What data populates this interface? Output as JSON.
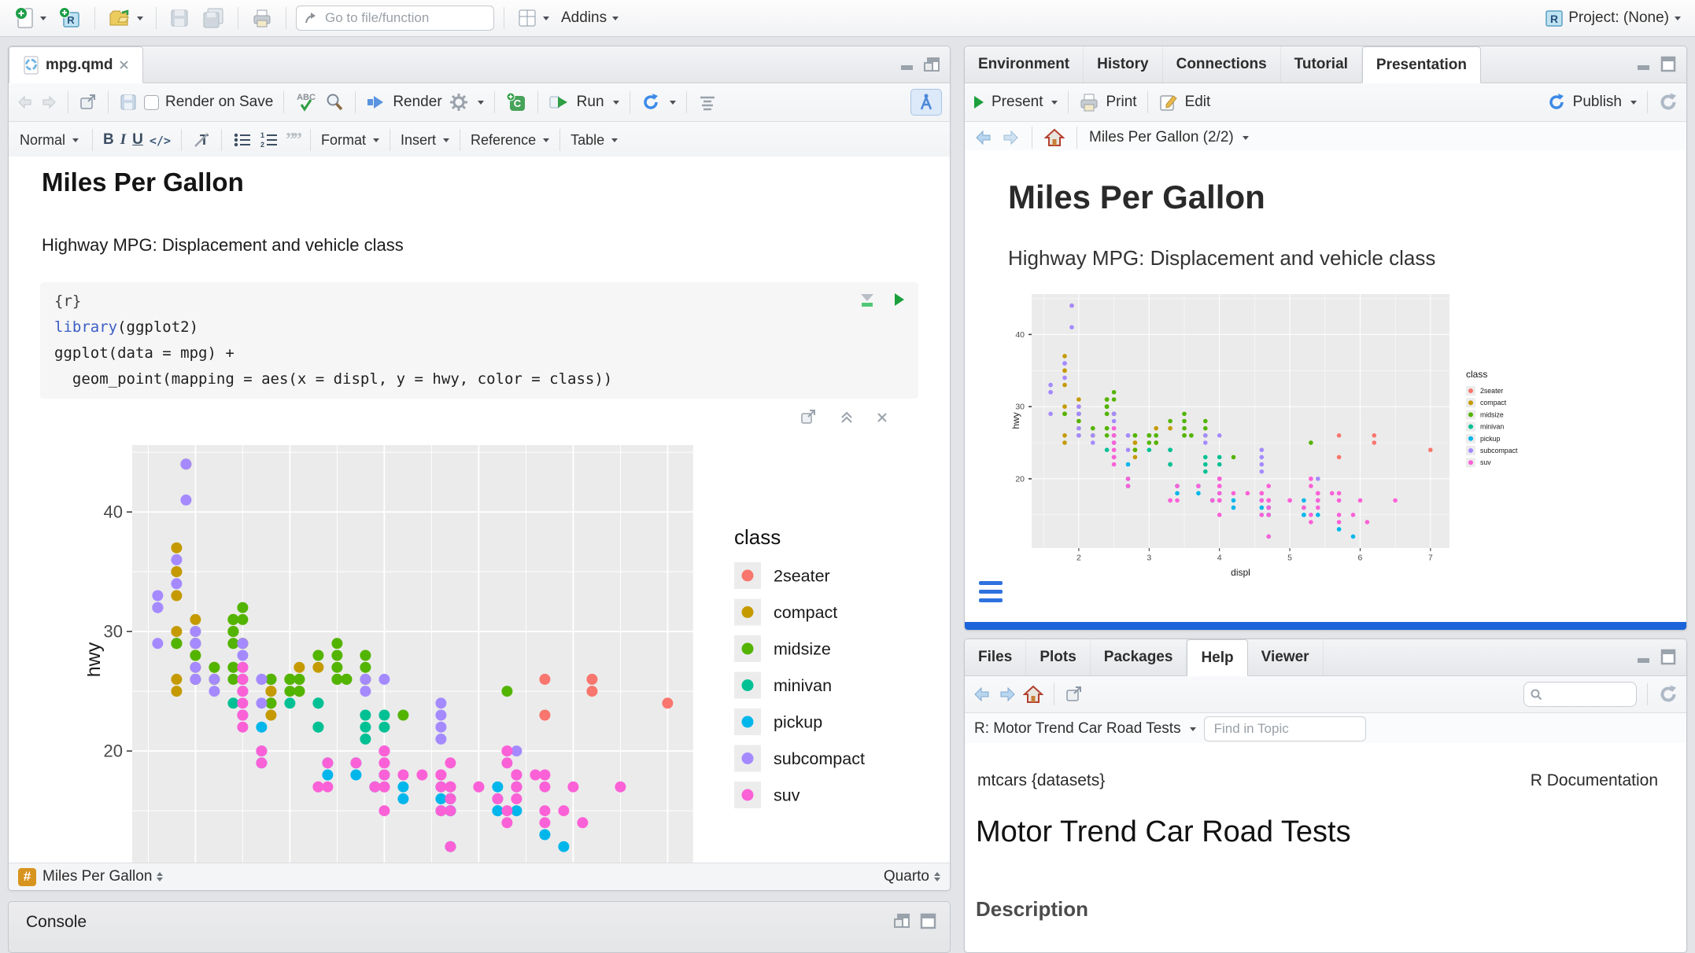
{
  "window": {
    "goto_placeholder": "Go to file/function",
    "addins_label": "Addins",
    "project_label": "Project: (None)"
  },
  "source_pane": {
    "tab_title": "mpg.qmd",
    "toolbar": {
      "render_on_save": "Render on Save",
      "render": "Render",
      "run": "Run"
    },
    "format_bar": {
      "style": "Normal",
      "bold": "B",
      "italic": "I",
      "underline": "U",
      "format": "Format",
      "insert": "Insert",
      "reference": "Reference",
      "table": "Table"
    },
    "document": {
      "title": "Miles Per Gallon",
      "subtitle": "Highway MPG: Displacement and vehicle class",
      "chunk": {
        "header": "{r}",
        "lines": [
          {
            "parts": [
              {
                "text": "library",
                "style": "function"
              },
              {
                "text": "(ggplot2)",
                "style": "plain"
              }
            ]
          },
          {
            "parts": [
              {
                "text": "ggplot(data = mpg) +",
                "style": "plain"
              }
            ]
          },
          {
            "parts": [
              {
                "text": "  geom_point(mapping = aes(x = displ, y = hwy, color = class))",
                "style": "plain"
              }
            ]
          }
        ]
      }
    },
    "status_bar": {
      "section": "Miles Per Gallon",
      "mode": "Quarto"
    }
  },
  "console_pane": {
    "title": "Console"
  },
  "presentation_pane": {
    "tabs": [
      "Environment",
      "History",
      "Connections",
      "Tutorial",
      "Presentation"
    ],
    "active_tab": "Presentation",
    "toolbar": {
      "present": "Present",
      "print": "Print",
      "edit": "Edit",
      "publish": "Publish"
    },
    "nav_title": "Miles Per Gallon (2/2)",
    "slide": {
      "title": "Miles Per Gallon",
      "subtitle": "Highway MPG: Displacement and vehicle class"
    },
    "progress_color": "#1b64da"
  },
  "help_pane": {
    "tabs": [
      "Files",
      "Plots",
      "Packages",
      "Help",
      "Viewer"
    ],
    "active_tab": "Help",
    "topic_label": "R: Motor Trend Car Road Tests",
    "find_placeholder": "Find in Topic",
    "content": {
      "symbol": "mtcars {datasets}",
      "doc_label": "R Documentation",
      "title": "Motor Trend Car Road Tests",
      "section_heading": "Description"
    }
  },
  "chart_data": {
    "type": "scatter",
    "title": "",
    "xlabel": "displ",
    "ylabel": "hwy",
    "legend_title": "class",
    "legend_position": "right",
    "grid": true,
    "panel_bg": "#EBEBEB",
    "xlim": [
      1.33,
      7.27
    ],
    "ylim": [
      10.4,
      45.6
    ],
    "x_ticks": [
      2,
      3,
      4,
      5,
      6,
      7
    ],
    "y_ticks": [
      20,
      30,
      40
    ],
    "series": [
      {
        "name": "2seater",
        "color": "#F8766D",
        "points": [
          [
            5.7,
            26
          ],
          [
            5.7,
            23
          ],
          [
            6.2,
            26
          ],
          [
            6.2,
            25
          ],
          [
            7,
            24
          ]
        ]
      },
      {
        "name": "compact",
        "color": "#C49A00",
        "points": [
          [
            1.8,
            29
          ],
          [
            1.8,
            29
          ],
          [
            2,
            31
          ],
          [
            2,
            30
          ],
          [
            2.8,
            26
          ],
          [
            2.8,
            26
          ],
          [
            3.1,
            27
          ],
          [
            1.8,
            26
          ],
          [
            1.8,
            25
          ],
          [
            2,
            28
          ],
          [
            2,
            27
          ],
          [
            2.8,
            25
          ],
          [
            2.8,
            25
          ],
          [
            3.1,
            25
          ],
          [
            3.1,
            25
          ],
          [
            2.2,
            26
          ],
          [
            2.2,
            27
          ],
          [
            2.4,
            30
          ],
          [
            2.4,
            31
          ],
          [
            3,
            26
          ],
          [
            3,
            26
          ],
          [
            3.3,
            27
          ],
          [
            1.8,
            30
          ],
          [
            1.8,
            33
          ],
          [
            1.8,
            35
          ],
          [
            1.8,
            37
          ],
          [
            1.8,
            35
          ],
          [
            2,
            29
          ],
          [
            2,
            26
          ],
          [
            2,
            29
          ],
          [
            2,
            29
          ],
          [
            2.8,
            24
          ],
          [
            1.9,
            44
          ],
          [
            2,
            29
          ],
          [
            2,
            26
          ],
          [
            2,
            29
          ],
          [
            2,
            29
          ],
          [
            2.5,
            29
          ],
          [
            2.5,
            29
          ],
          [
            2.8,
            23
          ],
          [
            2.8,
            24
          ]
        ]
      },
      {
        "name": "midsize",
        "color": "#53B400",
        "points": [
          [
            2.8,
            24
          ],
          [
            3.1,
            25
          ],
          [
            4.2,
            23
          ],
          [
            2.4,
            29
          ],
          [
            2.4,
            27
          ],
          [
            3.1,
            26
          ],
          [
            3.5,
            29
          ],
          [
            3.6,
            26
          ],
          [
            2.4,
            26
          ],
          [
            2.4,
            27
          ],
          [
            2.4,
            30
          ],
          [
            2.4,
            31
          ],
          [
            2.5,
            26
          ],
          [
            2.5,
            29
          ],
          [
            3.3,
            28
          ],
          [
            2.4,
            29
          ],
          [
            2.4,
            30
          ],
          [
            2.5,
            31
          ],
          [
            2.5,
            32
          ],
          [
            3.5,
            26
          ],
          [
            3.5,
            27
          ],
          [
            3,
            26
          ],
          [
            3,
            25
          ],
          [
            3.5,
            26
          ],
          [
            3.1,
            26
          ],
          [
            3.8,
            26
          ],
          [
            3.8,
            28
          ],
          [
            3.8,
            27
          ],
          [
            5.3,
            25
          ],
          [
            2.2,
            26
          ],
          [
            2.2,
            27
          ],
          [
            2.4,
            30
          ],
          [
            2.4,
            31
          ],
          [
            3,
            26
          ],
          [
            3,
            26
          ],
          [
            3.5,
            28
          ],
          [
            1.8,
            29
          ],
          [
            1.8,
            29
          ],
          [
            2,
            28
          ],
          [
            2,
            29
          ],
          [
            2.8,
            26
          ],
          [
            2.8,
            26
          ],
          [
            3.6,
            26
          ]
        ]
      },
      {
        "name": "minivan",
        "color": "#00C094",
        "points": [
          [
            2.4,
            24
          ],
          [
            3,
            24
          ],
          [
            3.3,
            22
          ],
          [
            3.3,
            22
          ],
          [
            3.3,
            24
          ],
          [
            3.3,
            24
          ],
          [
            3.8,
            22
          ],
          [
            3.8,
            21
          ],
          [
            3.8,
            23
          ],
          [
            4,
            23
          ],
          [
            4,
            22
          ]
        ]
      },
      {
        "name": "pickup",
        "color": "#00B6EB",
        "points": [
          [
            3.7,
            19
          ],
          [
            3.7,
            18
          ],
          [
            3.9,
            17
          ],
          [
            3.9,
            17
          ],
          [
            4.7,
            16
          ],
          [
            4.7,
            16
          ],
          [
            4.7,
            15
          ],
          [
            5.2,
            17
          ],
          [
            5.2,
            15
          ],
          [
            4.7,
            16
          ],
          [
            4.7,
            15
          ],
          [
            4.7,
            16
          ],
          [
            4.7,
            16
          ],
          [
            4.7,
            15
          ],
          [
            4.7,
            12
          ],
          [
            5.2,
            16
          ],
          [
            5.2,
            15
          ],
          [
            5.7,
            13
          ],
          [
            5.9,
            12
          ],
          [
            4.2,
            17
          ],
          [
            4.2,
            16
          ],
          [
            4.6,
            16
          ],
          [
            4.6,
            15
          ],
          [
            4.6,
            17
          ],
          [
            5.4,
            15
          ],
          [
            5.4,
            17
          ],
          [
            2.7,
            20
          ],
          [
            2.7,
            19
          ],
          [
            2.7,
            22
          ],
          [
            3.4,
            19
          ],
          [
            3.4,
            18
          ],
          [
            4,
            20
          ],
          [
            4,
            18
          ]
        ]
      },
      {
        "name": "subcompact",
        "color": "#A58AFF",
        "points": [
          [
            1.6,
            33
          ],
          [
            1.6,
            32
          ],
          [
            1.6,
            32
          ],
          [
            1.6,
            29
          ],
          [
            1.6,
            32
          ],
          [
            1.8,
            34
          ],
          [
            1.8,
            36
          ],
          [
            1.8,
            36
          ],
          [
            2,
            29
          ],
          [
            2,
            26
          ],
          [
            2,
            27
          ],
          [
            2,
            30
          ],
          [
            2,
            29
          ],
          [
            2.7,
            26
          ],
          [
            2.7,
            26
          ],
          [
            2.7,
            24
          ],
          [
            1.9,
            44
          ],
          [
            1.9,
            41
          ],
          [
            2,
            29
          ],
          [
            2,
            26
          ],
          [
            2.5,
            28
          ],
          [
            2.5,
            29
          ],
          [
            3.8,
            26
          ],
          [
            3.8,
            25
          ],
          [
            4,
            26
          ],
          [
            4.6,
            24
          ],
          [
            4.6,
            23
          ],
          [
            4.6,
            22
          ],
          [
            4.6,
            21
          ],
          [
            5.4,
            20
          ],
          [
            2.2,
            26
          ],
          [
            2.2,
            25
          ],
          [
            2.5,
            25
          ],
          [
            2.5,
            23
          ],
          [
            2.5,
            27
          ],
          [
            2.5,
            25
          ],
          [
            2.5,
            26
          ],
          [
            2.5,
            23
          ]
        ]
      },
      {
        "name": "suv",
        "color": "#FB61D7",
        "points": [
          [
            5.3,
            20
          ],
          [
            5.3,
            15
          ],
          [
            5.3,
            20
          ],
          [
            5.7,
            17
          ],
          [
            6,
            17
          ],
          [
            5.3,
            14
          ],
          [
            5.3,
            19
          ],
          [
            5.7,
            15
          ],
          [
            6.5,
            17
          ],
          [
            3.9,
            17
          ],
          [
            4.7,
            17
          ],
          [
            4.7,
            16
          ],
          [
            4.7,
            16
          ],
          [
            4.7,
            12
          ],
          [
            5.2,
            16
          ],
          [
            5.9,
            15
          ],
          [
            4.6,
            17
          ],
          [
            5.4,
            17
          ],
          [
            5.4,
            18
          ],
          [
            4,
            17
          ],
          [
            4,
            17
          ],
          [
            4,
            18
          ],
          [
            4,
            19
          ],
          [
            4.6,
            18
          ],
          [
            5,
            17
          ],
          [
            3.7,
            19
          ],
          [
            4,
            20
          ],
          [
            4.7,
            17
          ],
          [
            4.7,
            15
          ],
          [
            4.7,
            19
          ],
          [
            5.7,
            14
          ],
          [
            6.1,
            14
          ],
          [
            4,
            15
          ],
          [
            4.2,
            18
          ],
          [
            4.4,
            18
          ],
          [
            4.6,
            15
          ],
          [
            5.4,
            17
          ],
          [
            5.4,
            16
          ],
          [
            5.4,
            18
          ],
          [
            4,
            17
          ],
          [
            4,
            19
          ],
          [
            4.6,
            18
          ],
          [
            5,
            17
          ],
          [
            3.3,
            17
          ],
          [
            3.3,
            17
          ],
          [
            4,
            20
          ],
          [
            5.6,
            18
          ],
          [
            2.5,
            26
          ],
          [
            2.5,
            27
          ],
          [
            2.5,
            25
          ],
          [
            2.5,
            24
          ],
          [
            2.5,
            23
          ],
          [
            2.5,
            22
          ],
          [
            2.7,
            20
          ],
          [
            2.7,
            19
          ],
          [
            3.4,
            19
          ],
          [
            3.4,
            17
          ],
          [
            4,
            20
          ],
          [
            4.7,
            17
          ],
          [
            4.7,
            17
          ],
          [
            5.7,
            18
          ]
        ]
      }
    ]
  }
}
